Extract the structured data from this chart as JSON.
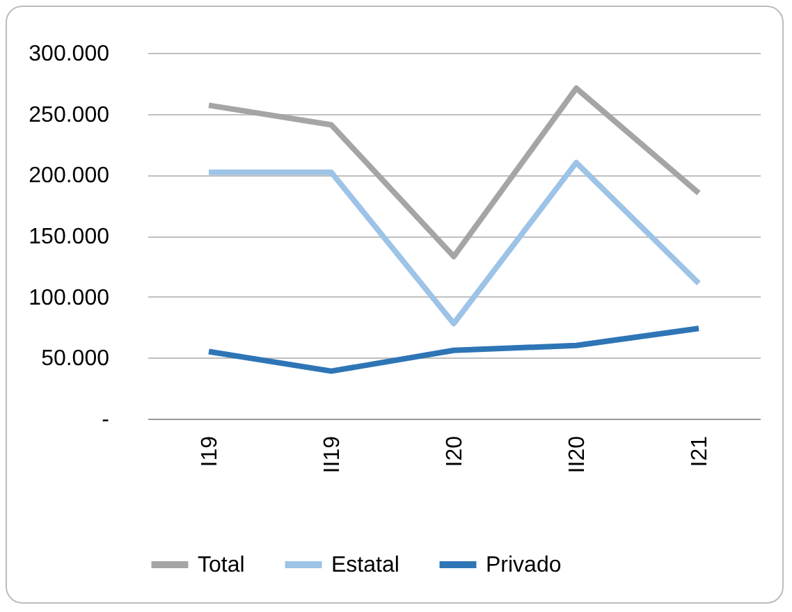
{
  "chart_data": {
    "type": "line",
    "categories": [
      "I19",
      "II19",
      "I20",
      "II20",
      "I21"
    ],
    "series": [
      {
        "name": "Total",
        "color": "#a5a5a5",
        "values": [
          257000,
          241000,
          133000,
          271000,
          185000
        ]
      },
      {
        "name": "Estatal",
        "color": "#9dc3e6",
        "values": [
          202000,
          202000,
          78000,
          210000,
          111000
        ]
      },
      {
        "name": "Privado",
        "color": "#2e75b6",
        "values": [
          55000,
          39000,
          56000,
          60000,
          74000
        ]
      }
    ],
    "ylim": [
      0,
      300000
    ],
    "yticks": [
      {
        "value": 0,
        "label": "-"
      },
      {
        "value": 50000,
        "label": "50.000"
      },
      {
        "value": 100000,
        "label": "100.000"
      },
      {
        "value": 150000,
        "label": "150.000"
      },
      {
        "value": 200000,
        "label": "200.000"
      },
      {
        "value": 250000,
        "label": "250.000"
      },
      {
        "value": 300000,
        "label": "300.000"
      }
    ],
    "grid": "y",
    "legend": "bottom",
    "marker": "none",
    "line_style": "solid"
  }
}
